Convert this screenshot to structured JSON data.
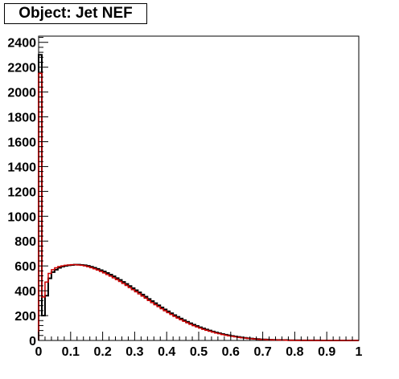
{
  "chart_data": {
    "type": "histogram-step",
    "title": "Object: Jet NEF",
    "xlabel": "",
    "ylabel": "",
    "xlim": [
      0,
      1
    ],
    "ylim": [
      0,
      2450
    ],
    "grid": false,
    "x_ticks": [
      0,
      0.1,
      0.2,
      0.3,
      0.4,
      0.5,
      0.6,
      0.7,
      0.8,
      0.9,
      1
    ],
    "x_tick_labels": [
      "0",
      "0.1",
      "0.2",
      "0.3",
      "0.4",
      "0.5",
      "0.6",
      "0.7",
      "0.8",
      "0.9",
      "1"
    ],
    "y_ticks": [
      0,
      200,
      400,
      600,
      800,
      1000,
      1200,
      1400,
      1600,
      1800,
      2000,
      2200,
      2400
    ],
    "y_tick_labels": [
      "0",
      "200",
      "400",
      "600",
      "800",
      "1000",
      "1200",
      "1400",
      "1600",
      "1800",
      "2000",
      "2200",
      "2400"
    ],
    "bin_width": 0.01,
    "series": [
      {
        "color": "#000000",
        "values": [
          2300,
          200,
          360,
          500,
          550,
          570,
          585,
          595,
          600,
          605,
          608,
          610,
          610,
          608,
          605,
          600,
          593,
          585,
          576,
          566,
          555,
          543,
          530,
          516,
          502,
          487,
          471,
          455,
          438,
          421,
          404,
          387,
          369,
          352,
          334,
          317,
          300,
          283,
          266,
          250,
          234,
          219,
          204,
          190,
          176,
          163,
          150,
          138,
          127,
          116,
          106,
          97,
          88,
          80,
          72,
          65,
          58,
          52,
          46,
          41,
          36,
          32,
          28,
          24,
          21,
          18,
          15,
          13,
          11,
          9,
          8,
          7,
          6,
          5,
          4,
          4,
          3,
          3,
          2,
          2,
          2,
          2,
          1,
          1,
          1,
          1,
          1,
          1,
          0,
          0,
          0,
          0,
          0,
          0,
          0,
          0,
          0,
          0,
          0,
          0
        ]
      },
      {
        "color": "#cc0000",
        "values": [
          2150,
          350,
          470,
          540,
          570,
          585,
          595,
          600,
          605,
          608,
          610,
          610,
          608,
          605,
          600,
          594,
          586,
          577,
          567,
          556,
          544,
          531,
          518,
          504,
          490,
          475,
          459,
          443,
          426,
          409,
          392,
          375,
          357,
          340,
          322,
          305,
          288,
          272,
          255,
          239,
          224,
          209,
          194,
          180,
          167,
          154,
          142,
          130,
          119,
          109,
          99,
          90,
          82,
          74,
          67,
          60,
          54,
          48,
          42,
          37,
          33,
          29,
          25,
          22,
          19,
          16,
          14,
          12,
          10,
          8,
          7,
          6,
          5,
          4,
          4,
          3,
          3,
          2,
          2,
          2,
          1,
          1,
          1,
          1,
          1,
          1,
          0,
          0,
          0,
          0,
          0,
          0,
          0,
          0,
          0,
          0,
          0,
          0,
          0,
          0
        ]
      }
    ]
  }
}
